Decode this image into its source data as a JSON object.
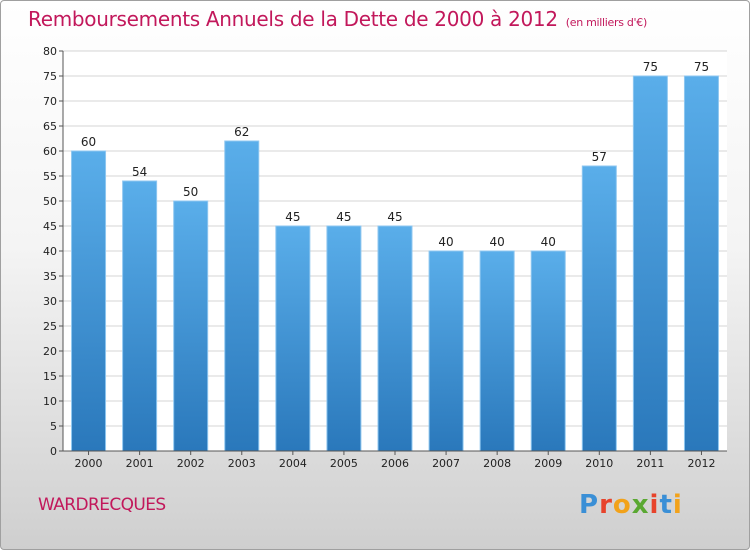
{
  "header": {
    "title": "Remboursements Annuels de la Dette de 2000 à 2012",
    "subtitle": "(en milliers d'€)"
  },
  "municipality": "WARDRECQUES",
  "logo": {
    "letters": [
      "P",
      "r",
      "o",
      "x",
      "i",
      "t",
      "i"
    ],
    "colors": [
      "#3a8fd6",
      "#e7432b",
      "#f2a21a",
      "#5aa832",
      "#e7432b",
      "#3a8fd6",
      "#f2a21a"
    ]
  },
  "chart_data": {
    "type": "bar",
    "categories": [
      "2000",
      "2001",
      "2002",
      "2003",
      "2004",
      "2005",
      "2006",
      "2007",
      "2008",
      "2009",
      "2010",
      "2011",
      "2012"
    ],
    "values": [
      60,
      54,
      50,
      62,
      45,
      45,
      45,
      40,
      40,
      40,
      57,
      75,
      75
    ],
    "ylim": [
      0,
      80
    ],
    "yticks": [
      0,
      5,
      10,
      15,
      20,
      25,
      30,
      35,
      40,
      45,
      50,
      55,
      60,
      65,
      70,
      75,
      80
    ],
    "grid": true,
    "bar_color": "#3a8fd6"
  }
}
